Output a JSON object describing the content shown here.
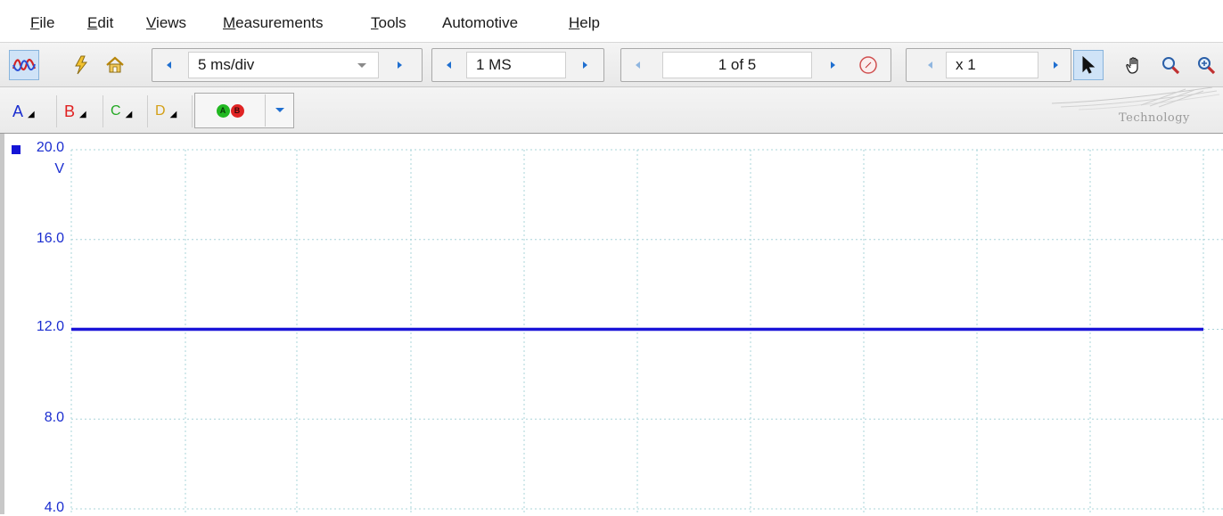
{
  "menu": [
    {
      "label": "File",
      "mn": "F",
      "rest": "ile"
    },
    {
      "label": "Edit",
      "mn": "E",
      "rest": "dit"
    },
    {
      "label": "Views",
      "mn": "V",
      "rest": "iews"
    },
    {
      "label": "Measurements",
      "mn": "M",
      "rest": "easurements"
    },
    {
      "label": "Tools",
      "mn": "T",
      "rest": "ools"
    },
    {
      "label": "Automotive",
      "mn": "",
      "rest": "Automotive"
    },
    {
      "label": "Help",
      "mn": "H",
      "rest": "elp"
    }
  ],
  "toolbar": {
    "timebase": "5 ms/div",
    "samples": "1 MS",
    "buffer": "1 of 5",
    "zoom": "x 1"
  },
  "channels": [
    {
      "label": "A",
      "color": "#1a2dd0"
    },
    {
      "label": "B",
      "color": "#e02020"
    },
    {
      "label": "C",
      "color": "#22a822"
    },
    {
      "label": "D",
      "color": "#d4a017"
    }
  ],
  "probe_badges": [
    "A",
    "B"
  ],
  "logo_text": "Technology",
  "scope": {
    "axis_unit": "V",
    "axis_ticks": [
      "20.0",
      "16.0",
      "12.0",
      "8.0",
      "4.0"
    ],
    "trace_color": "#1a14d8",
    "trace_level_volts": 12.0,
    "range_volts": [
      4.0,
      20.0
    ]
  }
}
